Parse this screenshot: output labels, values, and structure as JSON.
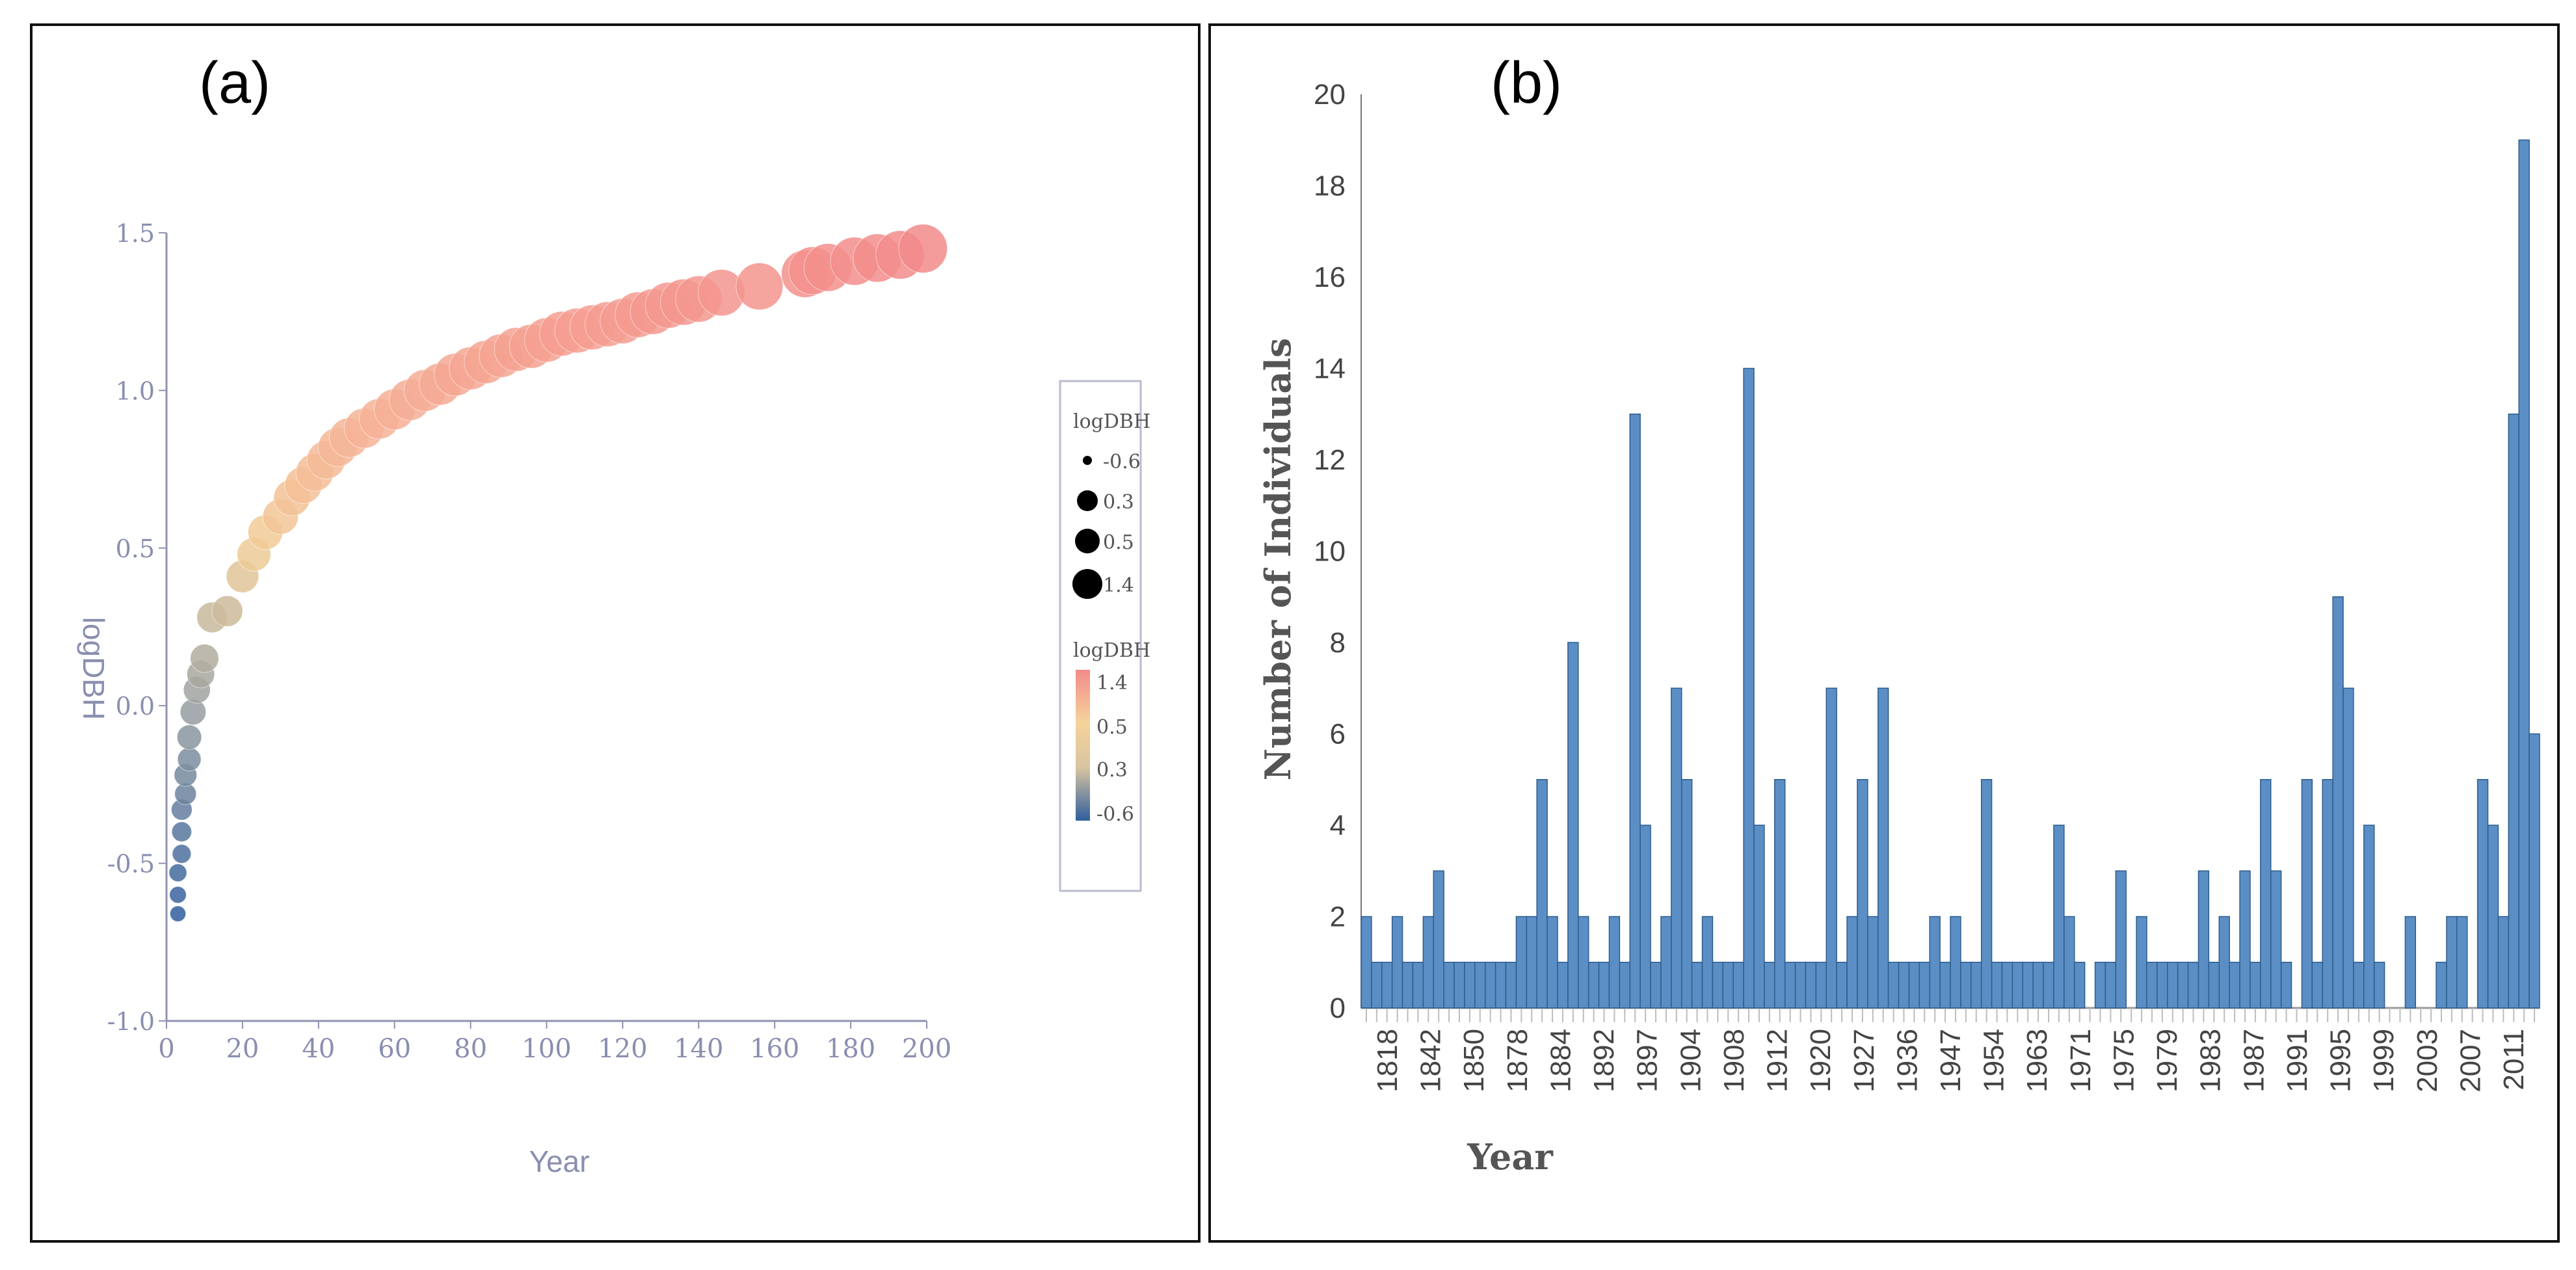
{
  "chart_data": [
    {
      "type": "scatter",
      "panel_label": "(a)",
      "xlabel": "Year",
      "ylabel": "logDBH",
      "xlim": [
        0,
        200
      ],
      "ylim": [
        -1.0,
        1.5
      ],
      "xticks": [
        "0",
        "20",
        "40",
        "60",
        "80",
        "100",
        "120",
        "140",
        "160",
        "180",
        "200"
      ],
      "yticks": [
        "-1.0",
        "-0.5",
        "0.0",
        "0.5",
        "1.0",
        "1.5"
      ],
      "x": [
        3,
        3,
        3,
        4,
        4,
        4,
        5,
        5,
        6,
        6,
        7,
        8,
        9,
        10,
        12,
        16,
        20,
        23,
        26,
        30,
        33,
        36,
        39,
        42,
        45,
        48,
        52,
        56,
        60,
        64,
        68,
        72,
        76,
        80,
        84,
        88,
        92,
        96,
        100,
        104,
        108,
        112,
        116,
        120,
        124,
        128,
        132,
        136,
        140,
        146,
        156,
        168,
        170,
        174,
        181,
        187,
        193,
        199
      ],
      "y": [
        -0.66,
        -0.6,
        -0.53,
        -0.47,
        -0.4,
        -0.33,
        -0.28,
        -0.22,
        -0.17,
        -0.1,
        -0.02,
        0.05,
        0.1,
        0.15,
        0.28,
        0.3,
        0.41,
        0.48,
        0.55,
        0.6,
        0.66,
        0.7,
        0.74,
        0.78,
        0.82,
        0.85,
        0.88,
        0.91,
        0.94,
        0.97,
        1.0,
        1.02,
        1.05,
        1.07,
        1.09,
        1.11,
        1.13,
        1.14,
        1.16,
        1.18,
        1.19,
        1.2,
        1.21,
        1.22,
        1.24,
        1.25,
        1.27,
        1.28,
        1.29,
        1.31,
        1.33,
        1.37,
        1.38,
        1.39,
        1.41,
        1.42,
        1.43,
        1.45
      ],
      "size_legend": {
        "title": "logDBH",
        "entries": [
          "-0.6",
          "0.3",
          "0.5",
          "1.4"
        ]
      },
      "color_legend": {
        "title": "logDBH",
        "entries": [
          "1.4",
          "0.5",
          "0.3",
          "-0.6"
        ],
        "colors": [
          "#f28b8b",
          "#f5d39a",
          "#dcc7a2",
          "#2f5e9e"
        ]
      }
    },
    {
      "type": "bar",
      "panel_label": "(b)",
      "xlabel": "Year",
      "ylabel": "Number of Individuals",
      "ylim": [
        0,
        20
      ],
      "yticks": [
        "0",
        "2",
        "4",
        "6",
        "8",
        "10",
        "12",
        "14",
        "16",
        "18",
        "20"
      ],
      "xtick_labels": [
        "1818",
        "1842",
        "1850",
        "1878",
        "1884",
        "1892",
        "1897",
        "1904",
        "1908",
        "1912",
        "1920",
        "1927",
        "1936",
        "1947",
        "1954",
        "1963",
        "1971",
        "1975",
        "1979",
        "1983",
        "1987",
        "1991",
        "1995",
        "1999",
        "2003",
        "2007",
        "2011"
      ],
      "values": [
        2,
        1,
        1,
        2,
        1,
        1,
        2,
        3,
        1,
        1,
        1,
        1,
        1,
        1,
        1,
        2,
        2,
        5,
        2,
        1,
        8,
        2,
        1,
        1,
        2,
        1,
        13,
        4,
        1,
        2,
        7,
        5,
        1,
        2,
        1,
        1,
        1,
        14,
        4,
        1,
        5,
        1,
        1,
        1,
        1,
        7,
        1,
        2,
        5,
        2,
        7,
        1,
        1,
        1,
        1,
        2,
        1,
        2,
        1,
        1,
        5,
        1,
        1,
        1,
        1,
        1,
        1,
        4,
        2,
        1,
        0,
        1,
        1,
        3,
        0,
        2,
        1,
        1,
        1,
        1,
        1,
        3,
        1,
        2,
        1,
        3,
        1,
        5,
        3,
        1,
        0,
        5,
        1,
        5,
        9,
        7,
        1,
        4,
        1,
        0,
        0,
        2,
        0,
        0,
        1,
        2,
        2,
        0,
        5,
        4,
        2,
        13,
        19,
        6
      ],
      "color": "#5b8ec4"
    }
  ]
}
